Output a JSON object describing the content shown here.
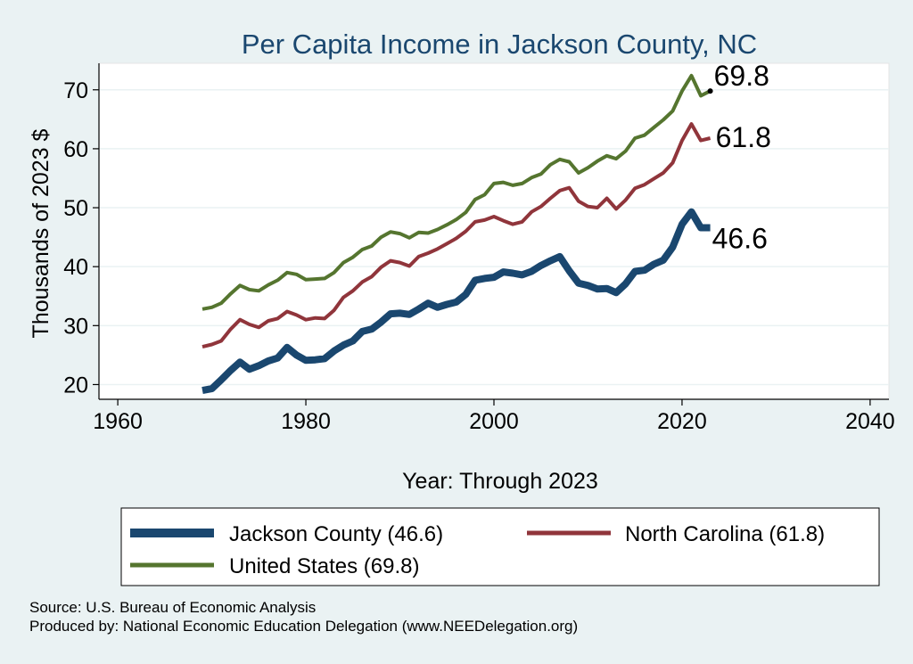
{
  "chart_data": {
    "type": "line",
    "title": "Per Capita Income in Jackson County, NC",
    "xlabel": "Year: Through 2023",
    "ylabel": "Thousands of 2023 $",
    "xlim": [
      1958,
      2042
    ],
    "ylim": [
      17.5,
      74.5
    ],
    "xticks": [
      1960,
      1980,
      2000,
      2020,
      2040
    ],
    "yticks": [
      20,
      30,
      40,
      50,
      60,
      70
    ],
    "grid": true,
    "legend_position": "bottom",
    "x": [
      1969,
      1970,
      1971,
      1972,
      1973,
      1974,
      1975,
      1976,
      1977,
      1978,
      1979,
      1980,
      1981,
      1982,
      1983,
      1984,
      1985,
      1986,
      1987,
      1988,
      1989,
      1990,
      1991,
      1992,
      1993,
      1994,
      1995,
      1996,
      1997,
      1998,
      1999,
      2000,
      2001,
      2002,
      2003,
      2004,
      2005,
      2006,
      2007,
      2008,
      2009,
      2010,
      2011,
      2012,
      2013,
      2014,
      2015,
      2016,
      2017,
      2018,
      2019,
      2020,
      2021,
      2022,
      2023
    ],
    "series": [
      {
        "name": "Jackson County",
        "legend_label": "Jackson County (46.6)",
        "color": "#1a476f",
        "end_label": "46.6",
        "values": [
          19.0,
          19.3,
          20.8,
          22.4,
          23.8,
          22.6,
          23.2,
          24.0,
          24.5,
          26.3,
          25.0,
          24.1,
          24.2,
          24.4,
          25.7,
          26.7,
          27.4,
          29.0,
          29.4,
          30.6,
          32.0,
          32.1,
          31.9,
          32.8,
          33.8,
          33.1,
          33.6,
          34.0,
          35.3,
          37.7,
          38.0,
          38.2,
          39.1,
          38.9,
          38.6,
          39.2,
          40.2,
          41.0,
          41.7,
          39.3,
          37.2,
          36.8,
          36.2,
          36.3,
          35.6,
          37.1,
          39.2,
          39.4,
          40.4,
          41.1,
          43.3,
          47.2,
          49.3,
          46.6,
          46.6
        ]
      },
      {
        "name": "North Carolina",
        "legend_label": "North Carolina (61.8)",
        "color": "#90353b",
        "end_label": "61.8",
        "values": [
          26.4,
          26.8,
          27.4,
          29.4,
          31.0,
          30.2,
          29.7,
          30.8,
          31.2,
          32.4,
          31.8,
          31.0,
          31.3,
          31.2,
          32.6,
          34.8,
          35.9,
          37.4,
          38.3,
          39.9,
          41.0,
          40.7,
          40.1,
          41.7,
          42.3,
          43.0,
          43.9,
          44.8,
          46.0,
          47.6,
          47.9,
          48.5,
          47.8,
          47.2,
          47.6,
          49.3,
          50.2,
          51.6,
          52.9,
          53.4,
          51.1,
          50.2,
          50.0,
          51.6,
          49.8,
          51.3,
          53.3,
          53.9,
          54.9,
          55.9,
          57.6,
          61.4,
          64.2,
          61.4,
          61.8
        ]
      },
      {
        "name": "United States",
        "legend_label": "United States (69.8)",
        "color": "#55752f",
        "end_label": "69.8",
        "values": [
          32.8,
          33.1,
          33.8,
          35.4,
          36.8,
          36.1,
          35.9,
          36.9,
          37.7,
          39.0,
          38.7,
          37.8,
          37.9,
          38.0,
          39.0,
          40.7,
          41.6,
          42.9,
          43.5,
          45.0,
          45.9,
          45.6,
          44.9,
          45.8,
          45.7,
          46.3,
          47.1,
          48.0,
          49.2,
          51.4,
          52.2,
          54.1,
          54.3,
          53.8,
          54.1,
          55.1,
          55.7,
          57.3,
          58.2,
          57.8,
          55.9,
          56.8,
          57.9,
          58.8,
          58.3,
          59.6,
          61.8,
          62.3,
          63.6,
          64.9,
          66.4,
          69.8,
          72.4,
          69.0,
          69.8
        ]
      }
    ]
  },
  "footer": {
    "source": "Source: U.S. Bureau of Economic Analysis",
    "produced_by": "Produced by: National Economic Education Delegation (www.NEEDelegation.org)"
  },
  "colors": {
    "background": "#eaf2f3",
    "plot_area": "#ffffff",
    "title": "#1a476f"
  }
}
